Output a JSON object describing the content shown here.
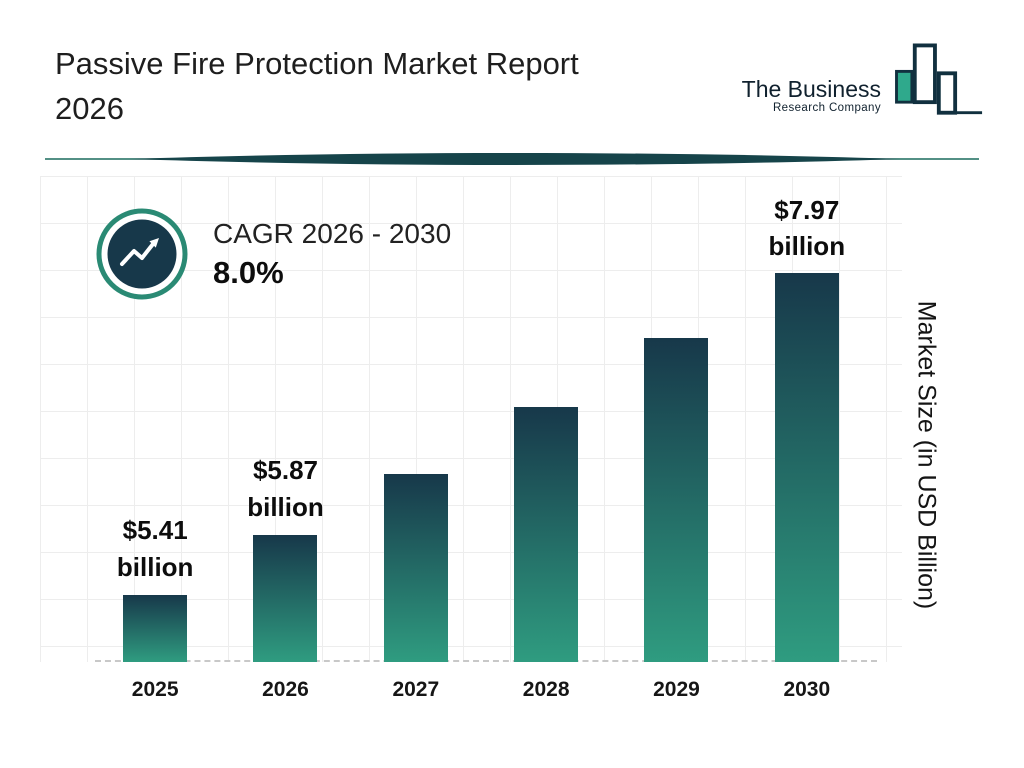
{
  "header": {
    "title_line1": "Passive Fire Protection Market Report",
    "title_line2": "2026",
    "logo": {
      "line1": "The Business",
      "line2": "Research Company"
    }
  },
  "cagr": {
    "label": "CAGR 2026 - 2030",
    "value": "8.0%"
  },
  "chart_data": {
    "type": "bar",
    "title": "Passive Fire Protection Market Report 2026",
    "categories": [
      "2025",
      "2026",
      "2027",
      "2028",
      "2029",
      "2030"
    ],
    "values": [
      5.41,
      5.87,
      6.34,
      6.85,
      7.38,
      7.97
    ],
    "bar_labels": [
      "$5.41 billion",
      "$5.87 billion",
      "",
      "",
      "",
      "$7.97 billion"
    ],
    "xlabel": "",
    "ylabel": "Market Size (in USD Billion)",
    "ylim": [
      4.9,
      8.5
    ],
    "grid": true,
    "legend": false,
    "bar_gradient_top": "#17384a",
    "bar_gradient_bottom": "#2f9c80"
  },
  "colors": {
    "accent_teal": "#2a8a74",
    "navy": "#17384a",
    "grid_line": "#ededed",
    "baseline_dash": "#c8c8c8"
  }
}
